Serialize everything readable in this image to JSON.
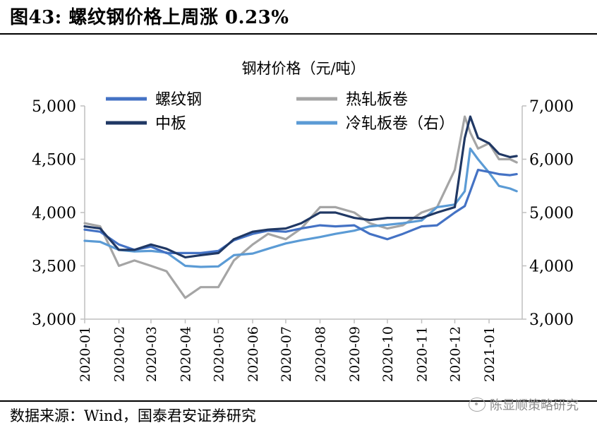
{
  "figure": {
    "title": "图43: 螺纹钢价格上周涨 0.23%",
    "source": "数据来源：Wind，国泰君安证券研究",
    "watermark": "陈显顺策略研究"
  },
  "chart_data": {
    "type": "line",
    "title": "钢材价格（元/吨）",
    "x_dates": [
      "2020-01-01",
      "2020-01-15",
      "2020-02-01",
      "2020-02-15",
      "2020-03-01",
      "2020-03-15",
      "2020-04-01",
      "2020-04-15",
      "2020-05-01",
      "2020-05-15",
      "2020-06-01",
      "2020-06-15",
      "2020-07-01",
      "2020-07-15",
      "2020-08-01",
      "2020-08-15",
      "2020-09-01",
      "2020-09-15",
      "2020-10-01",
      "2020-10-15",
      "2020-11-01",
      "2020-11-15",
      "2020-12-01",
      "2020-12-10",
      "2020-12-15",
      "2020-12-22",
      "2021-01-01",
      "2021-01-10",
      "2021-01-20",
      "2021-01-26"
    ],
    "x_ticks": [
      "2020-01",
      "2020-02",
      "2020-03",
      "2020-04",
      "2020-05",
      "2020-06",
      "2020-07",
      "2020-08",
      "2020-09",
      "2020-10",
      "2020-11",
      "2020-12",
      "2021-01"
    ],
    "y_left": {
      "min": 3000,
      "max": 5000,
      "ticks": [
        "3,000",
        "3,500",
        "4,000",
        "4,500",
        "5,000"
      ]
    },
    "y_right": {
      "min": 3000,
      "max": 7000,
      "ticks": [
        "3,000",
        "4,000",
        "5,000",
        "6,000",
        "7,000"
      ]
    },
    "series": [
      {
        "name": "螺纹钢",
        "axis": "left",
        "color": "#4472c4",
        "values": [
          3840,
          3820,
          3700,
          3650,
          3680,
          3620,
          3620,
          3620,
          3640,
          3740,
          3800,
          3830,
          3820,
          3850,
          3880,
          3870,
          3880,
          3800,
          3750,
          3800,
          3870,
          3880,
          4000,
          4060,
          4200,
          4400,
          4380,
          4360,
          4350,
          4360
        ]
      },
      {
        "name": "热轧板卷",
        "axis": "left",
        "color": "#a5a5a5",
        "values": [
          3900,
          3870,
          3500,
          3550,
          3500,
          3450,
          3200,
          3300,
          3300,
          3550,
          3700,
          3800,
          3750,
          3850,
          4050,
          4050,
          4000,
          3900,
          3850,
          3880,
          4000,
          4050,
          4400,
          4900,
          4750,
          4600,
          4650,
          4500,
          4500,
          4470
        ]
      },
      {
        "name": "中板",
        "axis": "left",
        "color": "#203864",
        "values": [
          3870,
          3850,
          3650,
          3650,
          3700,
          3660,
          3580,
          3600,
          3620,
          3750,
          3820,
          3840,
          3850,
          3900,
          4000,
          4000,
          3950,
          3930,
          3950,
          3950,
          3950,
          4000,
          4050,
          4700,
          4900,
          4700,
          4650,
          4550,
          4520,
          4530
        ]
      },
      {
        "name": "冷轧板卷（右）",
        "axis": "right",
        "color": "#5b9bd5",
        "values": [
          4470,
          4450,
          4300,
          4270,
          4280,
          4250,
          4000,
          3980,
          3990,
          4200,
          4230,
          4320,
          4420,
          4480,
          4540,
          4600,
          4660,
          4740,
          4770,
          4800,
          4850,
          5100,
          5150,
          5400,
          6200,
          6000,
          5750,
          5500,
          5450,
          5400
        ]
      }
    ],
    "legend": {
      "position": "top",
      "columns": 2
    },
    "grid": false
  }
}
